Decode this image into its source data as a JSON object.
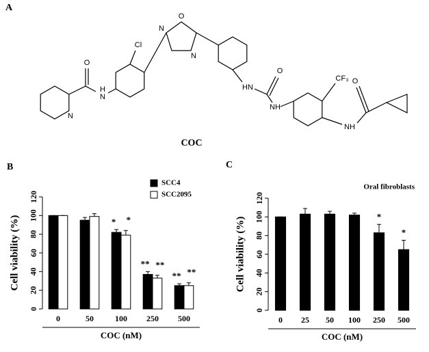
{
  "structure": {
    "panel_label": "A",
    "name": "COC",
    "atom_labels": [
      "O",
      "N",
      "H",
      "N",
      "Cl",
      "O",
      "N",
      "N",
      "H",
      "N",
      "O",
      "N",
      "H",
      "CF₃",
      "N",
      "H",
      "O"
    ]
  },
  "chart_data": [
    {
      "type": "bar",
      "panel_label": "B",
      "y_label": "Cell viability (%)",
      "x_label": "COC (nM)",
      "categories": [
        "0",
        "50",
        "100",
        "250",
        "500"
      ],
      "series": [
        {
          "name": "SCC4",
          "color": "#000000",
          "values": [
            100,
            95,
            82,
            37,
            25
          ],
          "errors": [
            0,
            3,
            3,
            3,
            2
          ],
          "annotations": [
            null,
            null,
            "*",
            "**",
            "**"
          ]
        },
        {
          "name": "SCC2095",
          "color": "#ffffff",
          "values": [
            100,
            99,
            79,
            33,
            25
          ],
          "errors": [
            0,
            3,
            5,
            3,
            3
          ],
          "annotations": [
            null,
            null,
            "*",
            "**",
            "**"
          ]
        }
      ],
      "ylim": [
        0,
        120
      ],
      "yticks": [
        0,
        20,
        40,
        60,
        80,
        100,
        120
      ],
      "legend": "top-right"
    },
    {
      "type": "bar",
      "panel_label": "C",
      "title": "Oral fibroblasts",
      "y_label": "Cell viability (%)",
      "x_label": "COC (nM)",
      "categories": [
        "0",
        "25",
        "50",
        "100",
        "250",
        "500"
      ],
      "values": [
        100,
        103,
        103,
        102,
        83,
        65
      ],
      "errors": [
        0,
        6,
        3,
        2,
        9,
        10
      ],
      "annotations": [
        null,
        null,
        null,
        null,
        "*",
        "*"
      ],
      "color": "#000000",
      "ylim": [
        0,
        120
      ],
      "yticks": [
        0,
        20,
        40,
        60,
        80,
        100,
        120
      ]
    }
  ]
}
